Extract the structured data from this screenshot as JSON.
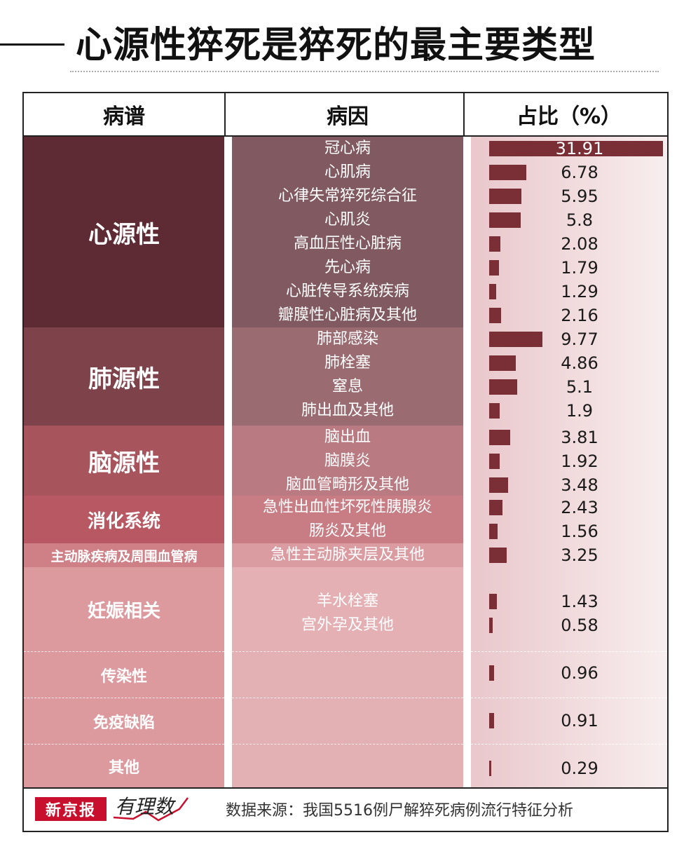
{
  "title": "心源性猝死是猝死的最主要类型",
  "headers": {
    "spectrum": "病谱",
    "cause": "病因",
    "ratio": "占比（%）"
  },
  "colors": {
    "bar": "#7a2f36",
    "logo": "#c8102e"
  },
  "chart_data": {
    "type": "bar",
    "orientation": "horizontal",
    "title": "心源性猝死是猝死的最主要类型",
    "xlabel": "占比（%）",
    "groups": [
      {
        "name": "心源性",
        "color": "#5e2a33",
        "causes": [
          {
            "name": "冠心病",
            "value": 31.91,
            "label": "31.91"
          },
          {
            "name": "心肌病",
            "value": 6.78,
            "label": "6.78"
          },
          {
            "name": "心律失常猝死综合征",
            "value": 5.95,
            "label": "5.95"
          },
          {
            "name": "心肌炎",
            "value": 5.8,
            "label": "5.8"
          },
          {
            "name": "高血压性心脏病",
            "value": 2.08,
            "label": "2.08"
          },
          {
            "name": "先心病",
            "value": 1.79,
            "label": "1.79"
          },
          {
            "name": "心脏传导系统疾病",
            "value": 1.29,
            "label": "1.29"
          },
          {
            "name": "瓣膜性心脏病及其他",
            "value": 2.16,
            "label": "2.16"
          }
        ]
      },
      {
        "name": "肺源性",
        "color": "#7e424a",
        "causes": [
          {
            "name": "肺部感染",
            "value": 9.77,
            "label": "9.77"
          },
          {
            "name": "肺栓塞",
            "value": 4.86,
            "label": "4.86"
          },
          {
            "name": "窒息",
            "value": 5.1,
            "label": "5.1"
          },
          {
            "name": "肺出血及其他",
            "value": 1.9,
            "label": "1.9"
          }
        ]
      },
      {
        "name": "脑源性",
        "color": "#a7545d",
        "causes": [
          {
            "name": "脑出血",
            "value": 3.81,
            "label": "3.81"
          },
          {
            "name": "脑膜炎",
            "value": 1.92,
            "label": "1.92"
          },
          {
            "name": "脑血管畸形及其他",
            "value": 3.48,
            "label": "3.48"
          }
        ]
      },
      {
        "name": "消化系统",
        "color": "#b85862",
        "causes": [
          {
            "name": "急性出血性坏死性胰腺炎",
            "value": 2.43,
            "label": "2.43"
          },
          {
            "name": "肠炎及其他",
            "value": 1.56,
            "label": "1.56"
          }
        ]
      },
      {
        "name": "主动脉疾病及周围血管病",
        "color": "#cf7f86",
        "causes": [
          {
            "name": "急性主动脉夹层及其他",
            "value": 3.25,
            "label": "3.25"
          }
        ]
      },
      {
        "name": "妊娠相关",
        "color": "#dc9a9f",
        "causes": [
          {
            "name": "羊水栓塞",
            "value": 1.43,
            "label": "1.43"
          },
          {
            "name": "宫外孕及其他",
            "value": 0.58,
            "label": "0.58"
          }
        ]
      },
      {
        "name": "传染性",
        "color": "#dc9a9f",
        "causes": [
          {
            "name": "",
            "value": 0.96,
            "label": "0.96"
          }
        ]
      },
      {
        "name": "免疫缺陷",
        "color": "#dc9a9f",
        "causes": [
          {
            "name": "",
            "value": 0.91,
            "label": "0.91"
          }
        ]
      },
      {
        "name": "其他",
        "color": "#dc9a9f",
        "causes": [
          {
            "name": "",
            "value": 0.29,
            "label": "0.29"
          }
        ]
      }
    ],
    "xlim": [
      0,
      31.91
    ],
    "grid": false
  },
  "footer": {
    "logo_text": "新京报",
    "brand_text": "有理数",
    "source": "数据来源：我国5516例尸解猝死病例流行特征分析"
  }
}
